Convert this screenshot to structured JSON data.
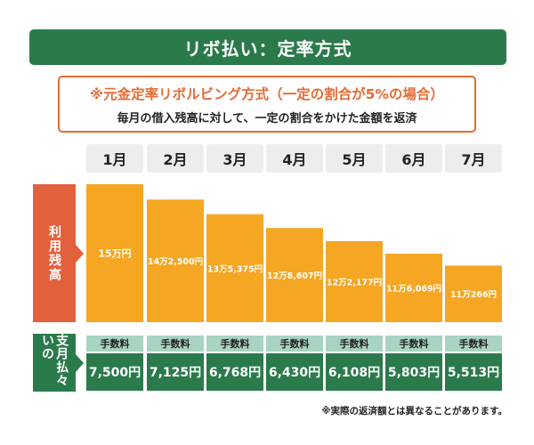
{
  "title": "リボ払い：定率方式",
  "info": {
    "headline": "※元金定率リボルビング方式（一定の割合が5%の場合）",
    "subline": "毎月の借入残高に対して、一定の割合をかけた金額を返済"
  },
  "side_labels": {
    "balance": "利用残高",
    "payment": "支月払々いの"
  },
  "fee_label": "手数料",
  "note": "※実際の返済額とは異なることがあります。",
  "colors": {
    "green": "#2b7a4b",
    "light_green": "#a9d4c2",
    "orange_bar": "#f5a623",
    "red_label": "#e3603c",
    "box_border": "#e66a33"
  },
  "chart_data": {
    "type": "bar",
    "categories": [
      "1月",
      "2月",
      "3月",
      "4月",
      "5月",
      "6月",
      "7月"
    ],
    "series": [
      {
        "name": "利用残高",
        "values": [
          150000,
          142500,
          135375,
          128607,
          122177,
          116069,
          110266
        ]
      }
    ],
    "bar_labels": [
      "15万円",
      "14万2,500円",
      "13万5,375円",
      "12万8,607円",
      "12万2,177円",
      "11万6,069円",
      "11万266円"
    ],
    "ylim": [
      0,
      150000
    ],
    "payment_labels": [
      "7,500円",
      "7,125円",
      "6,768円",
      "6,430円",
      "6,108円",
      "5,803円",
      "5,513円"
    ],
    "payments": [
      7500,
      7125,
      6768,
      6430,
      6108,
      5803,
      5513
    ]
  }
}
